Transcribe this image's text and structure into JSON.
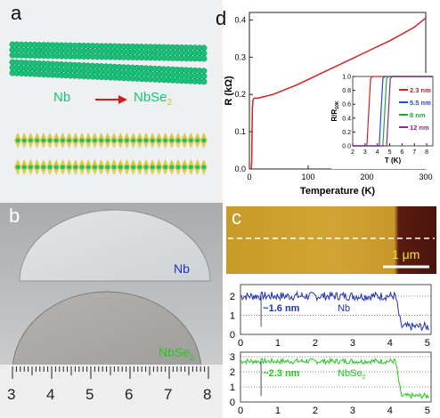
{
  "panels": {
    "a": "a",
    "b": "b",
    "c": "c",
    "d": "d"
  },
  "panel_a": {
    "from_label": "Nb",
    "to_label": "NbSe",
    "to_subscript": "2",
    "colors": {
      "nb": "#19c27a",
      "se": "#d6c21a",
      "arrow": "#d61c1c"
    }
  },
  "panel_b": {
    "label_top": "Nb",
    "label_bottom": "NbSe",
    "label_bottom_sub": "2",
    "ruler_numbers": [
      "3",
      "4",
      "5",
      "6",
      "7",
      "8"
    ],
    "colors": {
      "nb_label": "#2230c8",
      "nbse2_label": "#22c81c"
    }
  },
  "panel_c": {
    "scale_bar": "1 μm",
    "profile_top": {
      "label": "Nb",
      "step_label": "~1.6 nm",
      "yticks": [
        "0",
        "1",
        "2"
      ],
      "xticks": [
        "0",
        "1",
        "2",
        "3",
        "4",
        "5"
      ],
      "color": "#2132b0"
    },
    "profile_bottom": {
      "label": "NbSe",
      "label_sub": "2",
      "step_label": "~2.3 nm",
      "yticks": [
        "0",
        "1",
        "2",
        "3"
      ],
      "xticks": [
        "0",
        "1",
        "2",
        "3",
        "4",
        "5"
      ],
      "color": "#22c81c"
    }
  },
  "chart_data": [
    {
      "type": "line",
      "panel": "d",
      "xlabel": "Temperature (K)",
      "ylabel": "R (kΩ)",
      "xlim": [
        0,
        300
      ],
      "ylim": [
        0,
        0.42
      ],
      "xticks": [
        "0",
        "100",
        "200",
        "300"
      ],
      "yticks": [
        "0.0",
        "0.1",
        "0.2",
        "0.3",
        "0.4"
      ],
      "x": [
        2,
        3,
        4,
        5,
        6,
        8,
        10,
        15,
        20,
        40,
        80,
        120,
        160,
        200,
        240,
        280,
        300
      ],
      "y": [
        0.0,
        0.0,
        0.02,
        0.16,
        0.185,
        0.19,
        0.19,
        0.19,
        0.192,
        0.2,
        0.225,
        0.255,
        0.285,
        0.315,
        0.345,
        0.38,
        0.405
      ],
      "color": "#d62020"
    },
    {
      "type": "line",
      "panel": "d-inset",
      "xlabel": "T (K)",
      "ylabel": "R/R",
      "ylabel_sub": "10K",
      "xlim": [
        2,
        8.5
      ],
      "ylim": [
        0,
        1.0
      ],
      "xticks": [
        "2",
        "3",
        "4",
        "5",
        "6",
        "7",
        "8"
      ],
      "yticks": [
        "0.0",
        "0.2",
        "0.4",
        "0.6",
        "0.8",
        "1.0"
      ],
      "series": [
        {
          "name": "2.3 nm",
          "tc": 3.3,
          "color": "#d62020"
        },
        {
          "name": "5.5 nm",
          "tc": 4.3,
          "color": "#1f4bd6"
        },
        {
          "name": "8 nm",
          "tc": 4.6,
          "color": "#1fa83a"
        },
        {
          "name": "12 nm",
          "tc": 4.9,
          "color": "#8a2a8c"
        }
      ]
    }
  ]
}
